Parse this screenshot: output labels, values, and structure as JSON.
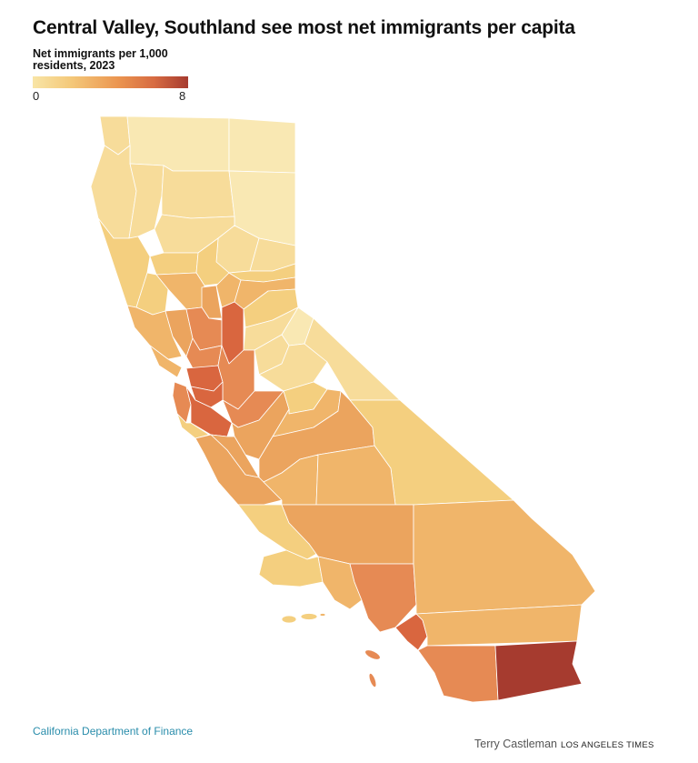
{
  "title": "Central Valley, Southland see most net immigrants per capita",
  "legend": {
    "title_line1": "Net immigrants per 1,000",
    "title_line2": "residents, 2023",
    "min_label": "0",
    "max_label": "8",
    "color_low": "#f8e5a6",
    "color_high": "#a63b2f"
  },
  "source": "California Department of Finance",
  "credit": {
    "author": "Terry Castleman",
    "publication": "LOS ANGELES TIMES"
  },
  "colors": {
    "c0": "#f9e8b3",
    "c1": "#f7dc9a",
    "c2": "#f4cf7f",
    "c3": "#f0b56a",
    "c4": "#eba45e",
    "c5": "#e68a54",
    "c6": "#d9663f",
    "c7": "#a63b2f"
  },
  "map_regions": [
    {
      "name": "del-norte",
      "level": "c1"
    },
    {
      "name": "siskiyou",
      "level": "c0"
    },
    {
      "name": "modoc",
      "level": "c0"
    },
    {
      "name": "humboldt",
      "level": "c1"
    },
    {
      "name": "trinity",
      "level": "c1"
    },
    {
      "name": "shasta",
      "level": "c1"
    },
    {
      "name": "lassen",
      "level": "c0"
    },
    {
      "name": "mendocino",
      "level": "c2"
    },
    {
      "name": "tehama",
      "level": "c1"
    },
    {
      "name": "plumas",
      "level": "c1"
    },
    {
      "name": "glenn",
      "level": "c2"
    },
    {
      "name": "butte",
      "level": "c2"
    },
    {
      "name": "sierra",
      "level": "c1"
    },
    {
      "name": "lake",
      "level": "c2"
    },
    {
      "name": "colusa",
      "level": "c3"
    },
    {
      "name": "sutter",
      "level": "c4"
    },
    {
      "name": "yuba",
      "level": "c3"
    },
    {
      "name": "nevada",
      "level": "c2"
    },
    {
      "name": "placer",
      "level": "c3"
    },
    {
      "name": "sonoma",
      "level": "c3"
    },
    {
      "name": "napa",
      "level": "c4"
    },
    {
      "name": "yolo",
      "level": "c5"
    },
    {
      "name": "sacramento",
      "level": "c6"
    },
    {
      "name": "el-dorado",
      "level": "c2"
    },
    {
      "name": "alpine",
      "level": "c0"
    },
    {
      "name": "amador",
      "level": "c1"
    },
    {
      "name": "marin",
      "level": "c3"
    },
    {
      "name": "solano",
      "level": "c5"
    },
    {
      "name": "contra-costa",
      "level": "c6"
    },
    {
      "name": "san-joaquin",
      "level": "c5"
    },
    {
      "name": "calaveras",
      "level": "c1"
    },
    {
      "name": "tuolumne",
      "level": "c1"
    },
    {
      "name": "mono",
      "level": "c1"
    },
    {
      "name": "alameda",
      "level": "c6"
    },
    {
      "name": "san-mateo",
      "level": "c5"
    },
    {
      "name": "santa-clara",
      "level": "c6"
    },
    {
      "name": "stanislaus",
      "level": "c5"
    },
    {
      "name": "merced",
      "level": "c4"
    },
    {
      "name": "mariposa",
      "level": "c2"
    },
    {
      "name": "madera",
      "level": "c3"
    },
    {
      "name": "santa-cruz",
      "level": "c2"
    },
    {
      "name": "san-benito",
      "level": "c4"
    },
    {
      "name": "fresno",
      "level": "c4"
    },
    {
      "name": "inyo",
      "level": "c2"
    },
    {
      "name": "monterey",
      "level": "c4"
    },
    {
      "name": "kings",
      "level": "c3"
    },
    {
      "name": "tulare",
      "level": "c3"
    },
    {
      "name": "san-luis-obispo",
      "level": "c2"
    },
    {
      "name": "kern",
      "level": "c4"
    },
    {
      "name": "santa-barbara",
      "level": "c2"
    },
    {
      "name": "ventura",
      "level": "c3"
    },
    {
      "name": "los-angeles",
      "level": "c5"
    },
    {
      "name": "san-bernardino",
      "level": "c3"
    },
    {
      "name": "orange",
      "level": "c6"
    },
    {
      "name": "riverside",
      "level": "c3"
    },
    {
      "name": "san-diego",
      "level": "c5"
    },
    {
      "name": "imperial",
      "level": "c7"
    }
  ]
}
